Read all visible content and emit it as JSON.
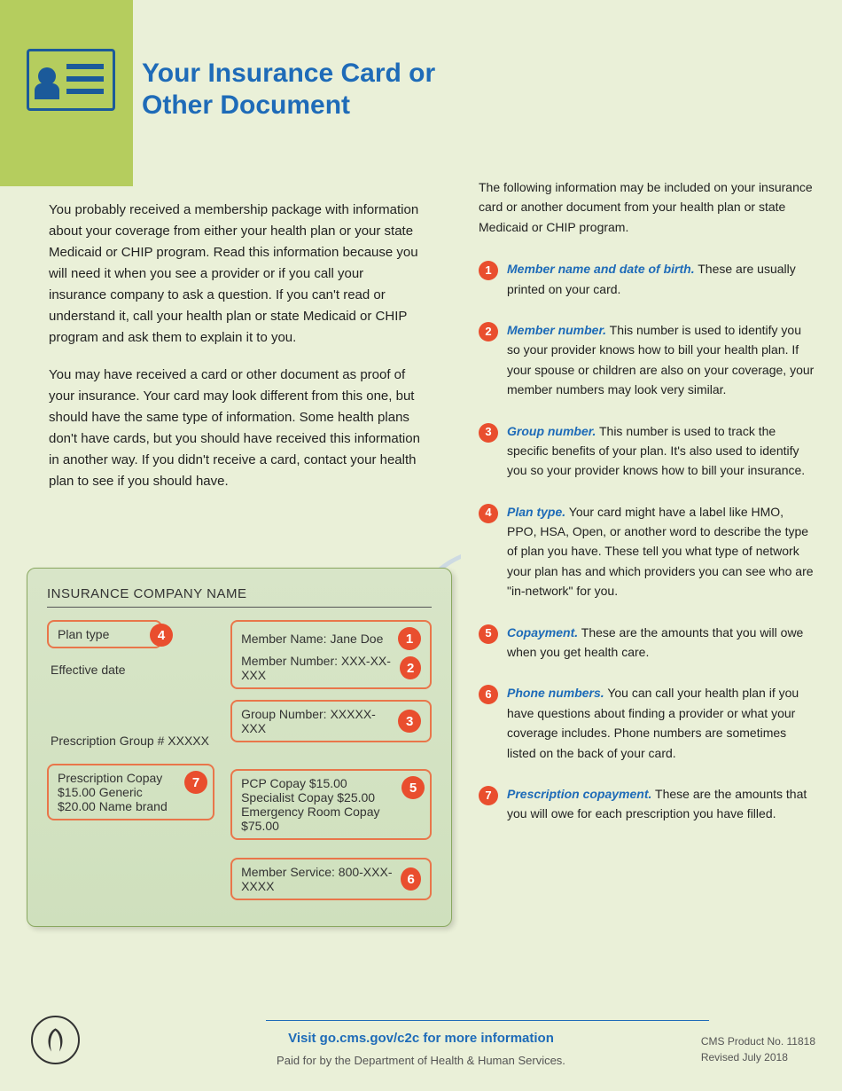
{
  "colors": {
    "page_bg": "#eaf0d8",
    "green_block": "#b5cd5e",
    "blue": "#1e6bb8",
    "orange": "#e94e2e",
    "orange_border": "#e9764a"
  },
  "title": "Your Insurance Card or Other Document",
  "left_paragraphs": [
    "You probably received a membership package with information about your coverage from either your health plan or your state Medicaid or CHIP program. Read this information because you will need it when you see a provider or if you call your insurance company to ask a question. If you can't read or understand it, call your health plan or state Medicaid or CHIP program and ask them to explain it to you.",
    "You may have received a card or other document as proof of your insurance. Your card may look different from this one, but should have the same type of information. Some health plans don't have cards, but you should have received this information in another way. If you didn't receive a card, contact your health plan to see if you should have."
  ],
  "right_intro": "The following information may be included on your insurance card or another document from your health plan or state Medicaid or CHIP program.",
  "definitions": [
    {
      "num": "1",
      "label": "Member name and date of birth.",
      "text": " These are usually printed on your card."
    },
    {
      "num": "2",
      "label": "Member number.",
      "text": " This number is used to identify you so your provider knows how to bill your health plan. If your spouse or children are also on your coverage, your member numbers may look very similar."
    },
    {
      "num": "3",
      "label": "Group number.",
      "text": " This number is used to track the specific benefits of your plan. It's also used to identify you so your provider knows how to bill your insurance."
    },
    {
      "num": "4",
      "label": "Plan type.",
      "text": " Your card might have a label like HMO, PPO, HSA, Open, or another word to describe the type of plan you have. These tell you what type of network your plan has and which providers you can see who are \"in-network\" for you."
    },
    {
      "num": "5",
      "label": "Copayment.",
      "text": " These are the amounts that you will owe when you get health care."
    },
    {
      "num": "6",
      "label": "Phone numbers.",
      "text": " You can call your health plan if you have questions about finding a provider or what your coverage includes. Phone numbers are sometimes listed on the back of your card."
    },
    {
      "num": "7",
      "label": "Prescription copayment.",
      "text": " These are the amounts that you will owe for each prescription you have filled."
    }
  ],
  "card": {
    "company": "INSURANCE COMPANY NAME",
    "plan_type": "Plan type",
    "effective": "Effective date",
    "rx_group": "Prescription Group # XXXXX",
    "rx_copay_title": "Prescription Copay",
    "rx_generic": "$15.00 Generic",
    "rx_brand": "$20.00 Name brand",
    "member_name": "Member Name: Jane Doe",
    "member_number": "Member Number: XXX-XX-XXX",
    "group_number": "Group Number: XXXXX-XXX",
    "pcp": "PCP Copay $15.00",
    "specialist": "Specialist Copay $25.00",
    "er": "Emergency Room Copay $75.00",
    "service": "Member Service: 800-XXX-XXXX",
    "badges": {
      "plan": "4",
      "member": "1",
      "number": "2",
      "group": "3",
      "copay": "5",
      "service": "6",
      "rx": "7"
    }
  },
  "footer": {
    "link": "Visit go.cms.gov/c2c for more information",
    "paid": "Paid for by the Department of Health & Human Services.",
    "product": "CMS Product No. 11818",
    "revised": "Revised July 2018"
  }
}
